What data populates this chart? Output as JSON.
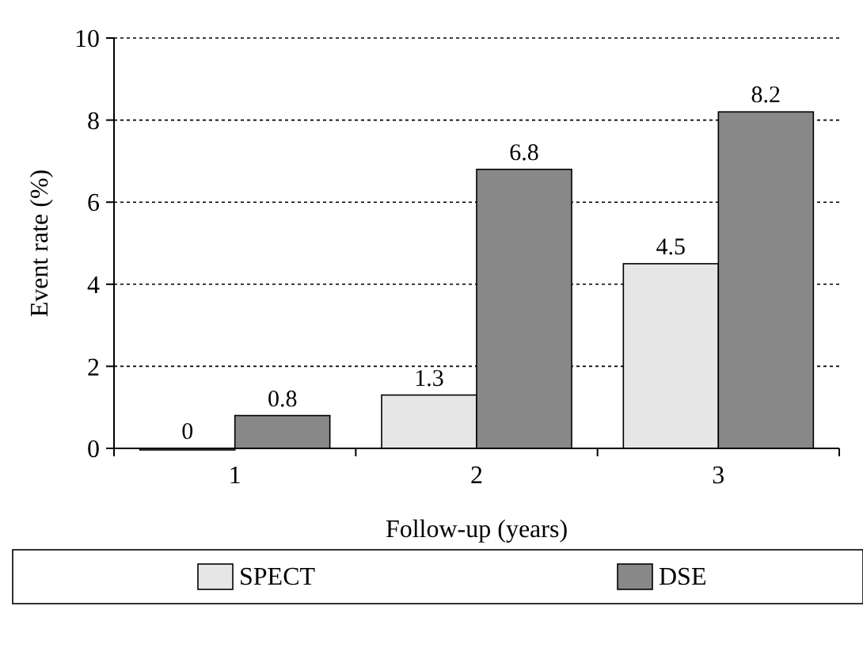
{
  "chart_data": {
    "type": "bar",
    "xlabel": "Follow-up (years)",
    "ylabel": "Event rate (%)",
    "categories": [
      "1",
      "2",
      "3"
    ],
    "series": [
      {
        "name": "SPECT",
        "color": "#e6e6e6",
        "values": [
          0,
          1.3,
          4.5
        ]
      },
      {
        "name": "DSE",
        "color": "#888888",
        "values": [
          0.8,
          6.8,
          8.2
        ]
      }
    ],
    "ylim": [
      0,
      10
    ],
    "yticks": [
      0,
      2,
      4,
      6,
      8,
      10
    ],
    "grid": "y",
    "legend": "bottom",
    "data_labels": true
  }
}
